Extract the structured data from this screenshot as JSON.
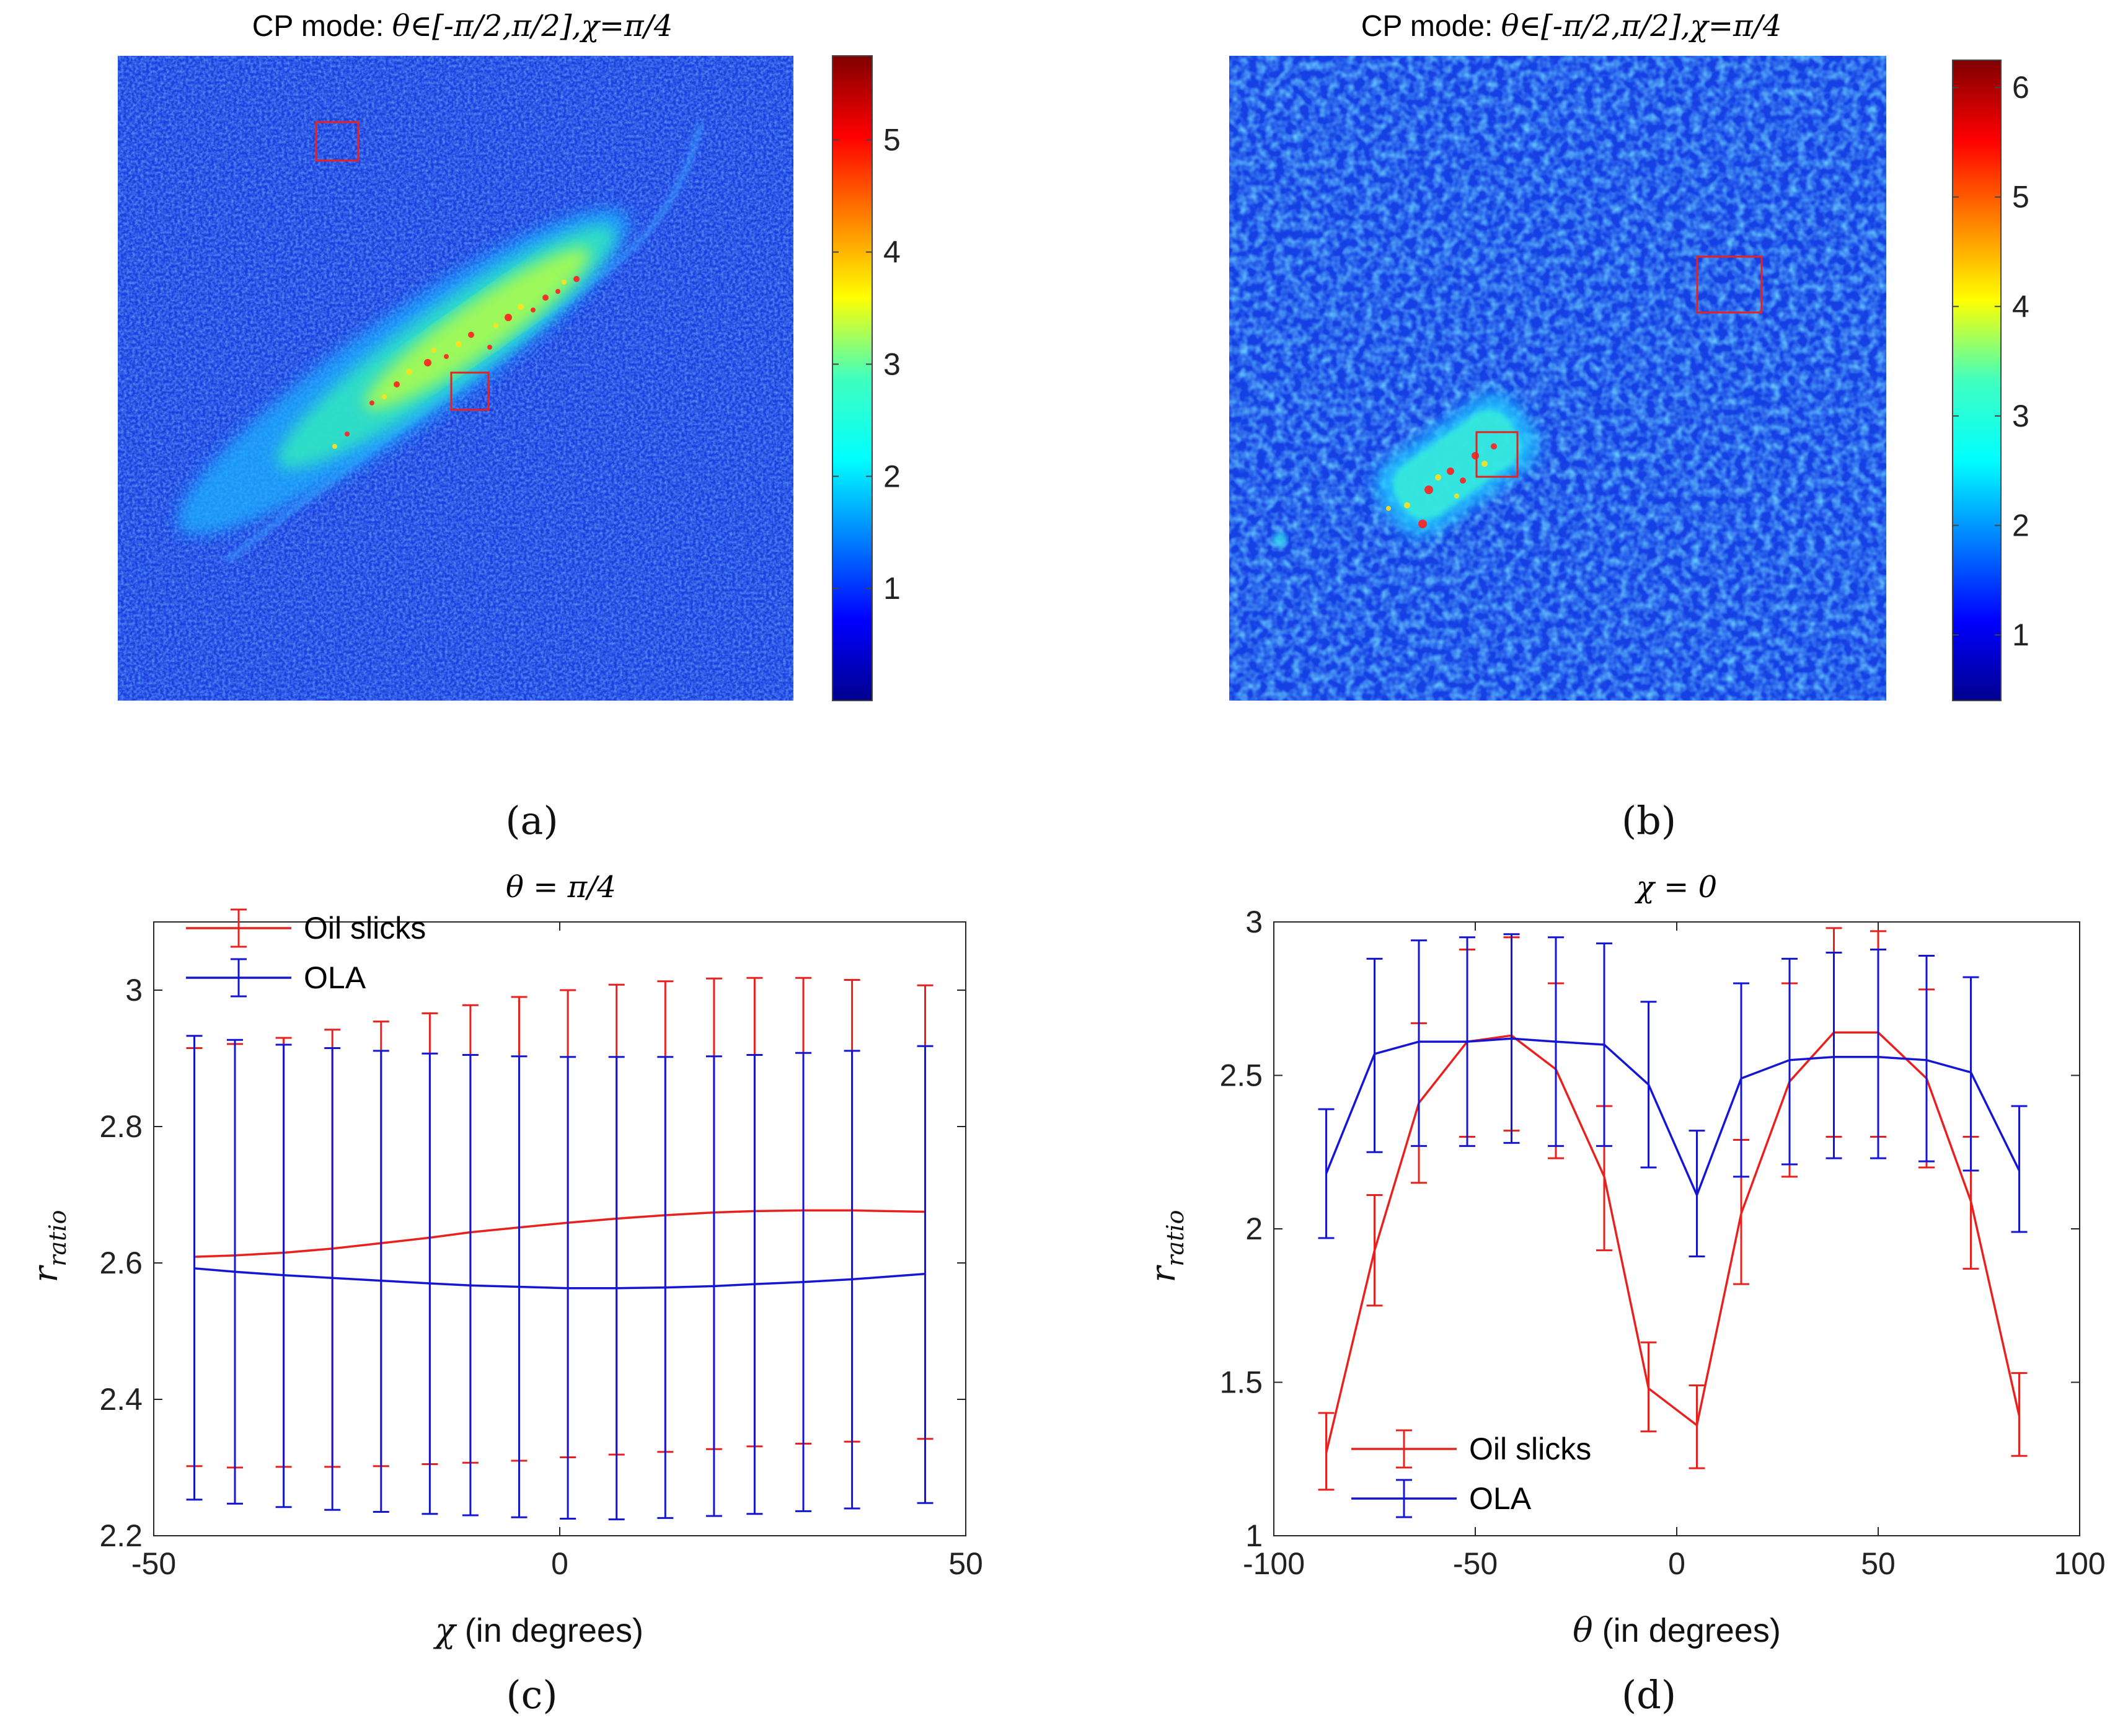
{
  "panels": {
    "a": {
      "caption": "(a)",
      "title_prefix": "CP mode: ",
      "title_math": "θ∈[-π/2,π/2],χ=π/4",
      "colorbar_ticks": [
        "1",
        "2",
        "3",
        "4",
        "5"
      ],
      "colorbar_range": [
        0,
        5.75
      ]
    },
    "b": {
      "caption": "(b)",
      "title_prefix": "CP mode: ",
      "title_math": "θ∈[-π/2,π/2],χ=π/4",
      "colorbar_ticks": [
        "1",
        "2",
        "3",
        "4",
        "5",
        "6"
      ],
      "colorbar_range": [
        0.4,
        6.25
      ]
    }
  },
  "colors": {
    "oil": "#e8201e",
    "ola": "#1515d4",
    "roi": "#e8201e"
  },
  "chart_data": [
    {
      "id": "c",
      "type": "line",
      "caption": "(c)",
      "title": "θ = π/4",
      "xlabel_sym": "χ",
      "xlabel_rest": " (in degrees)",
      "ylabel_main": "r",
      "ylabel_sub": "ratio",
      "xlim": [
        -50,
        50
      ],
      "ylim": [
        2.2,
        3.1
      ],
      "xticks": [
        -50,
        0,
        50
      ],
      "yticks": [
        2.2,
        2.4,
        2.6,
        2.8,
        3.0
      ],
      "ytick_labels": [
        "2.2",
        "2.4",
        "2.6",
        "2.8",
        "3"
      ],
      "xtick_labels": [
        "-50",
        "0",
        "50"
      ],
      "legend": [
        "Oil slicks",
        "OLA"
      ],
      "series": [
        {
          "name": "Oil slicks",
          "x": [
            -45,
            -40,
            -34,
            -28,
            -22,
            -16,
            -11,
            -5,
            1,
            7,
            13,
            19,
            24,
            30,
            36,
            45
          ],
          "values": [
            2.609,
            2.611,
            2.615,
            2.621,
            2.629,
            2.637,
            2.645,
            2.652,
            2.659,
            2.665,
            2.67,
            2.674,
            2.676,
            2.677,
            2.677,
            2.675
          ],
          "upper": [
            2.915,
            2.921,
            2.93,
            2.942,
            2.954,
            2.966,
            2.978,
            2.99,
            3.0,
            3.008,
            3.013,
            3.017,
            3.018,
            3.018,
            3.015,
            3.007
          ],
          "lower": [
            2.302,
            2.3,
            2.301,
            2.301,
            2.302,
            2.305,
            2.307,
            2.31,
            2.315,
            2.319,
            2.323,
            2.327,
            2.331,
            2.335,
            2.338,
            2.342
          ]
        },
        {
          "name": "OLA",
          "x": [
            -45,
            -40,
            -34,
            -28,
            -22,
            -16,
            -11,
            -5,
            1,
            7,
            13,
            19,
            24,
            30,
            36,
            45
          ],
          "values": [
            2.592,
            2.587,
            2.582,
            2.578,
            2.574,
            2.57,
            2.567,
            2.565,
            2.563,
            2.563,
            2.564,
            2.566,
            2.569,
            2.572,
            2.576,
            2.584
          ],
          "upper": [
            2.933,
            2.927,
            2.92,
            2.915,
            2.911,
            2.907,
            2.905,
            2.903,
            2.902,
            2.902,
            2.902,
            2.903,
            2.905,
            2.908,
            2.911,
            2.918
          ],
          "lower": [
            2.253,
            2.247,
            2.242,
            2.238,
            2.235,
            2.232,
            2.23,
            2.227,
            2.225,
            2.224,
            2.226,
            2.229,
            2.232,
            2.236,
            2.24,
            2.248
          ]
        }
      ]
    },
    {
      "id": "d",
      "type": "line",
      "caption": "(d)",
      "title": "χ = 0",
      "xlabel_sym": "θ",
      "xlabel_rest": " (in degrees)",
      "ylabel_main": "r",
      "ylabel_sub": "ratio",
      "xlim": [
        -100,
        100
      ],
      "ylim": [
        1.0,
        3.0
      ],
      "xticks": [
        -100,
        -50,
        0,
        50,
        100
      ],
      "yticks": [
        1.0,
        1.5,
        2.0,
        2.5,
        3.0
      ],
      "ytick_labels": [
        "1",
        "1.5",
        "2",
        "2.5",
        "3"
      ],
      "xtick_labels": [
        "-100",
        "-50",
        "0",
        "50",
        "100"
      ],
      "legend": [
        "Oil slicks",
        "OLA"
      ],
      "series": [
        {
          "name": "Oil slicks",
          "x": [
            -87,
            -75,
            -64,
            -52,
            -41,
            -30,
            -18,
            -7,
            5,
            16,
            28,
            39,
            50,
            62,
            73,
            85
          ],
          "values": [
            1.27,
            1.93,
            2.41,
            2.61,
            2.63,
            2.52,
            2.17,
            1.48,
            1.36,
            2.05,
            2.48,
            2.64,
            2.64,
            2.49,
            2.09,
            1.39
          ],
          "upper": [
            1.4,
            2.11,
            2.67,
            2.91,
            2.95,
            2.8,
            2.4,
            1.63,
            1.49,
            2.29,
            2.8,
            2.98,
            2.97,
            2.78,
            2.3,
            1.53
          ],
          "lower": [
            1.15,
            1.75,
            2.15,
            2.3,
            2.32,
            2.23,
            1.93,
            1.34,
            1.22,
            1.82,
            2.17,
            2.3,
            2.3,
            2.2,
            1.87,
            1.26
          ]
        },
        {
          "name": "OLA",
          "x": [
            -87,
            -75,
            -64,
            -52,
            -41,
            -30,
            -18,
            -7,
            5,
            16,
            28,
            39,
            50,
            62,
            73,
            85
          ],
          "values": [
            2.18,
            2.57,
            2.61,
            2.61,
            2.62,
            2.61,
            2.6,
            2.47,
            2.11,
            2.49,
            2.55,
            2.56,
            2.56,
            2.55,
            2.51,
            2.19
          ],
          "upper": [
            2.39,
            2.88,
            2.94,
            2.95,
            2.96,
            2.95,
            2.93,
            2.74,
            2.32,
            2.8,
            2.88,
            2.9,
            2.91,
            2.89,
            2.82,
            2.4
          ],
          "lower": [
            1.97,
            2.25,
            2.27,
            2.27,
            2.28,
            2.27,
            2.27,
            2.2,
            1.91,
            2.17,
            2.21,
            2.23,
            2.23,
            2.22,
            2.19,
            1.99
          ]
        }
      ]
    }
  ]
}
